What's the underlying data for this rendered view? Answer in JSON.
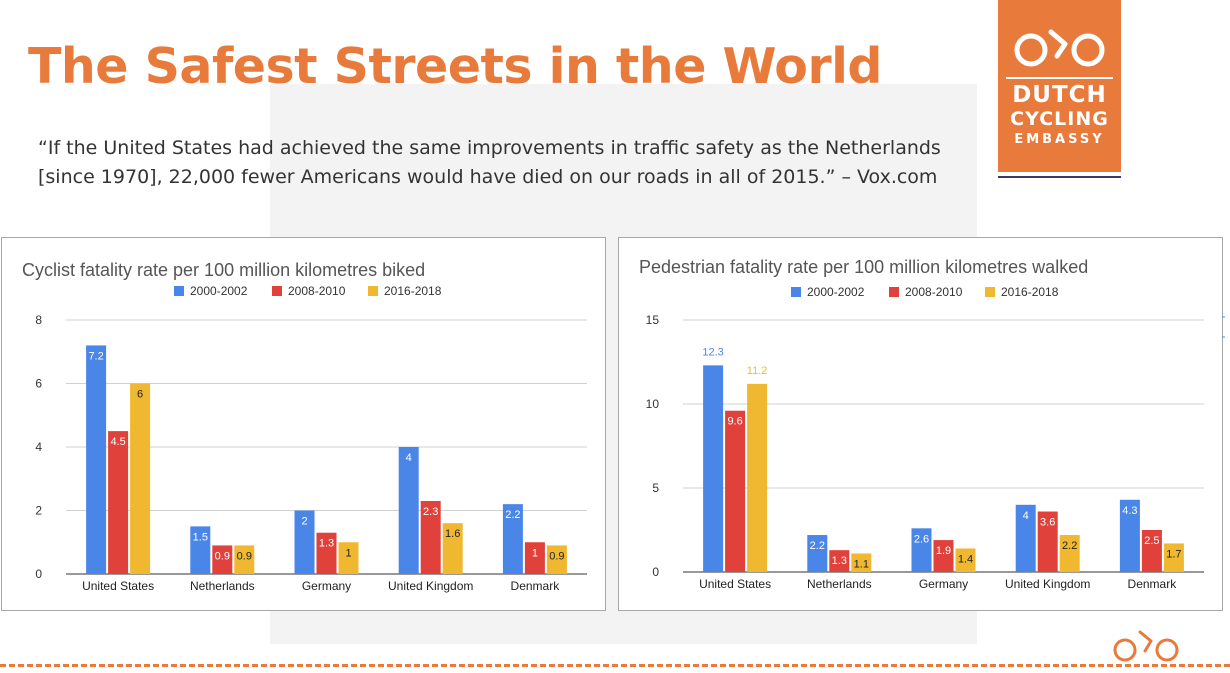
{
  "slide": {
    "title": "The Safest Streets in the World",
    "quote_line1": "“If the United States had achieved the same improvements in traffic safety as the Netherlands",
    "quote_line2": "[since 1970], 22,000 fewer Americans would have died on our roads in all of 2015.” – Vox.com"
  },
  "logo": {
    "line1": "DUTCH",
    "line2": "CYCLING",
    "line3": "EMBASSY",
    "icon": "bicycle-wheels-icon",
    "brand_color": "#e87b3c"
  },
  "series_colors": [
    "#4a86e8",
    "#e0413a",
    "#f0b830"
  ],
  "chart_data": [
    {
      "type": "bar",
      "title": "Cyclist fatality rate per 100 million kilometres biked",
      "categories": [
        "United States",
        "Netherlands",
        "Germany",
        "United Kingdom",
        "Denmark"
      ],
      "series": [
        {
          "name": "2000-2002",
          "values": [
            7.2,
            1.5,
            2,
            4,
            2.2
          ],
          "labels": [
            "7.2",
            "1.5",
            "2",
            "4",
            "2.2"
          ]
        },
        {
          "name": "2008-2010",
          "values": [
            4.5,
            0.9,
            1.3,
            2.3,
            1
          ],
          "labels": [
            "4.5",
            "0.9",
            "1.3",
            "2.3",
            "1"
          ]
        },
        {
          "name": "2016-2018",
          "values": [
            6,
            0.9,
            1,
            1.6,
            0.9
          ],
          "labels": [
            "6",
            "0.9",
            "1",
            "1.6",
            "0.9"
          ]
        }
      ],
      "ylim": [
        0,
        8
      ],
      "yticks": [
        0,
        2,
        4,
        6,
        8
      ],
      "grid": true,
      "legend": "top-center"
    },
    {
      "type": "bar",
      "title": "Pedestrian fatality rate per 100 million kilometres walked",
      "categories": [
        "United States",
        "Netherlands",
        "Germany",
        "United Kingdom",
        "Denmark"
      ],
      "series": [
        {
          "name": "2000-2002",
          "values": [
            12.3,
            2.2,
            2.6,
            4,
            4.3
          ],
          "labels": [
            "12.3",
            "2.2",
            "2.6",
            "4",
            "4.3"
          ]
        },
        {
          "name": "2008-2010",
          "values": [
            9.6,
            1.3,
            1.9,
            3.6,
            2.5
          ],
          "labels": [
            "9.6",
            "1.3",
            "1.9",
            "3.6",
            "2.5"
          ]
        },
        {
          "name": "2016-2018",
          "values": [
            11.2,
            1.1,
            1.4,
            2.2,
            1.7
          ],
          "labels": [
            "11.2",
            "1.1",
            "1.4",
            "2.2",
            "1.7"
          ]
        }
      ],
      "ylim": [
        0,
        15
      ],
      "yticks": [
        0,
        5,
        10,
        15
      ],
      "grid": true,
      "legend": "top-center"
    }
  ]
}
